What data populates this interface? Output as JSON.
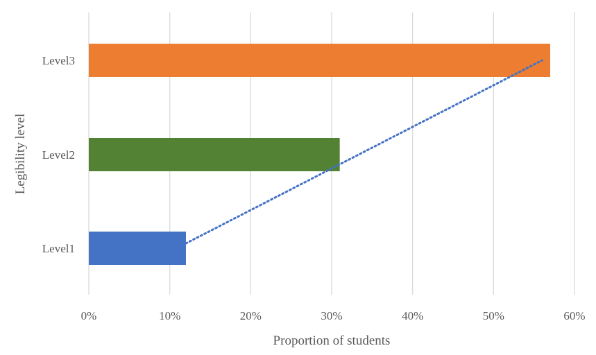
{
  "chart_data": {
    "type": "bar",
    "orientation": "horizontal",
    "title": "",
    "xlabel": "Proportion of students",
    "ylabel": "Legibility level",
    "xlim": [
      0,
      0.6
    ],
    "x_ticks": [
      "0%",
      "10%",
      "20%",
      "30%",
      "40%",
      "50%",
      "60%"
    ],
    "categories": [
      "Level1",
      "Level2",
      "Level3"
    ],
    "values": [
      0.12,
      0.31,
      0.57
    ],
    "colors": [
      "#4472c4",
      "#548235",
      "#ed7d31"
    ],
    "grid": true,
    "legend": "none",
    "trendline": {
      "type": "linear",
      "style": "dotted",
      "color": "#4472c4",
      "from": 0.12,
      "to": 0.56
    }
  }
}
